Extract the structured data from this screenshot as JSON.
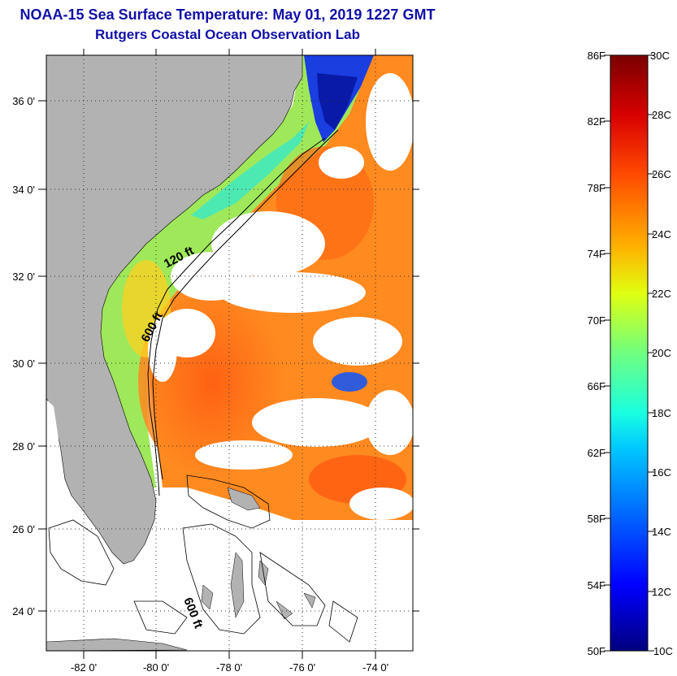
{
  "header": {
    "title_line1": "NOAA-15 Sea Surface Temperature:  May 01, 2019 1227 GMT",
    "title_line2": "Rutgers Coastal Ocean Observation Lab"
  },
  "map": {
    "lat_labels": [
      "36 0'",
      "34 0'",
      "32 0'",
      "30 0'",
      "28 0'",
      "26 0'",
      "24 0'"
    ],
    "lon_labels": [
      "-82 0'",
      "-80 0'",
      "-78 0'",
      "-76 0'",
      "-74 0'"
    ],
    "isobaths": [
      "120 ft",
      "600 ft",
      "600 ft"
    ]
  },
  "colorbar": {
    "f_labels": [
      "86F",
      "82F",
      "78F",
      "74F",
      "70F",
      "66F",
      "62F",
      "58F",
      "54F",
      "50F"
    ],
    "c_labels": [
      "30C",
      "28C",
      "26C",
      "24C",
      "22C",
      "20C",
      "18C",
      "16C",
      "14C",
      "12C",
      "10C"
    ],
    "colors": [
      "#00007f",
      "#0000ff",
      "#00c8ff",
      "#1affe0",
      "#70ff80",
      "#e0ff10",
      "#ffb000",
      "#ff4a00",
      "#d80000",
      "#7a0000"
    ]
  }
}
